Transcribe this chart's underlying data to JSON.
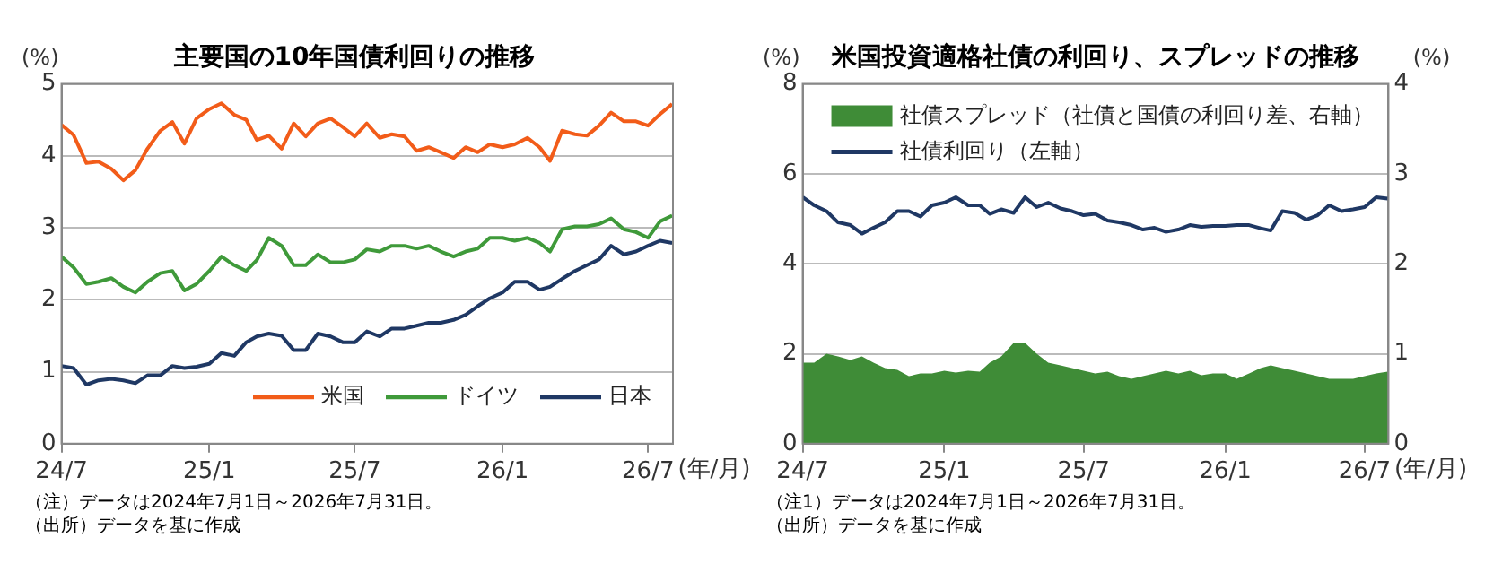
{
  "chart_data": [
    {
      "type": "line",
      "title": "主要国の10年国債利回りの推移",
      "ylabel": "(%)",
      "xlabel": "(年/月)",
      "x": [
        "2024-07-01",
        "2024-07-16",
        "2024-08-01",
        "2024-08-16",
        "2024-09-01",
        "2024-09-16",
        "2024-10-01",
        "2024-10-16",
        "2024-11-01",
        "2024-11-16",
        "2024-12-01",
        "2024-12-16",
        "2025-01-01",
        "2025-01-16",
        "2025-02-01",
        "2025-02-16",
        "2025-03-01",
        "2025-03-16",
        "2025-04-01",
        "2025-04-16",
        "2025-05-01",
        "2025-05-16",
        "2025-06-01",
        "2025-06-16",
        "2025-07-01",
        "2025-07-16",
        "2025-08-01",
        "2025-08-16",
        "2025-09-01",
        "2025-09-16",
        "2025-10-01",
        "2025-10-16",
        "2025-11-01",
        "2025-11-16",
        "2025-12-01",
        "2025-12-16",
        "2026-01-01",
        "2026-01-16",
        "2026-02-01",
        "2026-02-16",
        "2026-03-01",
        "2026-03-16",
        "2026-04-01",
        "2026-04-16",
        "2026-05-01",
        "2026-05-16",
        "2026-06-01",
        "2026-06-16",
        "2026-07-01",
        "2026-07-16",
        "2026-07-31"
      ],
      "series": [
        {
          "name": "米国",
          "color": "#f25c19",
          "values": [
            4.43,
            4.29,
            3.9,
            3.92,
            3.82,
            3.66,
            3.8,
            4.1,
            4.35,
            4.47,
            4.17,
            4.52,
            4.65,
            4.73,
            4.57,
            4.5,
            4.22,
            4.28,
            4.1,
            4.45,
            4.27,
            4.45,
            4.52,
            4.4,
            4.27,
            4.45,
            4.25,
            4.3,
            4.27,
            4.07,
            4.12,
            4.05,
            3.97,
            4.12,
            4.05,
            4.16,
            4.12,
            4.16,
            4.25,
            4.12,
            3.93,
            4.35,
            4.3,
            4.28,
            4.42,
            4.6,
            4.48,
            4.48,
            4.42,
            4.58,
            4.72
          ]
        },
        {
          "name": "ドイツ",
          "color": "#3f9a3a",
          "values": [
            2.6,
            2.45,
            2.22,
            2.25,
            2.3,
            2.18,
            2.1,
            2.25,
            2.37,
            2.4,
            2.13,
            2.22,
            2.4,
            2.6,
            2.48,
            2.4,
            2.55,
            2.86,
            2.75,
            2.48,
            2.48,
            2.63,
            2.52,
            2.52,
            2.56,
            2.7,
            2.67,
            2.75,
            2.75,
            2.71,
            2.75,
            2.67,
            2.6,
            2.67,
            2.71,
            2.86,
            2.86,
            2.82,
            2.86,
            2.79,
            2.67,
            2.98,
            3.02,
            3.02,
            3.05,
            3.13,
            2.98,
            2.94,
            2.86,
            3.09,
            3.17
          ]
        },
        {
          "name": "日本",
          "color": "#1f3864",
          "values": [
            1.08,
            1.05,
            0.82,
            0.88,
            0.9,
            0.88,
            0.84,
            0.95,
            0.95,
            1.08,
            1.05,
            1.07,
            1.11,
            1.26,
            1.22,
            1.41,
            1.49,
            1.53,
            1.5,
            1.3,
            1.3,
            1.53,
            1.49,
            1.41,
            1.41,
            1.56,
            1.49,
            1.6,
            1.6,
            1.64,
            1.68,
            1.68,
            1.72,
            1.79,
            1.91,
            2.02,
            2.1,
            2.25,
            2.25,
            2.14,
            2.18,
            2.29,
            2.4,
            2.48,
            2.56,
            2.75,
            2.63,
            2.67,
            2.75,
            2.82,
            2.79
          ]
        }
      ],
      "xlim": [
        "2024-07-01",
        "2026-08-01"
      ],
      "xticks": [
        {
          "value": "2024-07-01",
          "label": "24/7"
        },
        {
          "value": "2025-01-01",
          "label": "25/1"
        },
        {
          "value": "2025-07-01",
          "label": "25/7"
        },
        {
          "value": "2026-01-01",
          "label": "26/1"
        },
        {
          "value": "2026-07-01",
          "label": "26/7"
        }
      ],
      "ylim": [
        0,
        5
      ],
      "yticks": [
        0,
        1,
        2,
        3,
        4,
        5
      ],
      "grid": "y",
      "legend": "bottom right",
      "annotations": [
        "（注）データは2024年7月1日～2026年7月31日。",
        "（出所）データを基に作成"
      ]
    },
    {
      "type": "line",
      "title": "米国投資適格社債の利回り、スプレッドの推移",
      "ylabel": "(%)",
      "y2label": "(%)",
      "xlabel": "(年/月)",
      "x": [
        "2024-07-01",
        "2024-07-16",
        "2024-08-01",
        "2024-08-16",
        "2024-09-01",
        "2024-09-16",
        "2024-10-01",
        "2024-10-16",
        "2024-11-01",
        "2024-11-16",
        "2024-12-01",
        "2024-12-16",
        "2025-01-01",
        "2025-01-16",
        "2025-02-01",
        "2025-02-16",
        "2025-03-01",
        "2025-03-16",
        "2025-04-01",
        "2025-04-16",
        "2025-05-01",
        "2025-05-16",
        "2025-06-01",
        "2025-06-16",
        "2025-07-01",
        "2025-07-16",
        "2025-08-01",
        "2025-08-16",
        "2025-09-01",
        "2025-09-16",
        "2025-10-01",
        "2025-10-16",
        "2025-11-01",
        "2025-11-16",
        "2025-12-01",
        "2025-12-16",
        "2026-01-01",
        "2026-01-16",
        "2026-02-01",
        "2026-02-16",
        "2026-03-01",
        "2026-03-16",
        "2026-04-01",
        "2026-04-16",
        "2026-05-01",
        "2026-05-16",
        "2026-06-01",
        "2026-06-16",
        "2026-07-01",
        "2026-07-16",
        "2026-07-31"
      ],
      "series": [
        {
          "name": "社債スプレッド（社債と国債の利回り差、右軸）",
          "type": "area",
          "axis": "y2",
          "color": "#3f8c37",
          "values": [
            0.9,
            0.9,
            1.0,
            0.97,
            0.93,
            0.97,
            0.9,
            0.84,
            0.82,
            0.75,
            0.78,
            0.78,
            0.81,
            0.79,
            0.81,
            0.8,
            0.9,
            0.97,
            1.12,
            1.12,
            1.0,
            0.9,
            0.87,
            0.84,
            0.81,
            0.78,
            0.8,
            0.75,
            0.72,
            0.75,
            0.78,
            0.81,
            0.78,
            0.81,
            0.76,
            0.78,
            0.78,
            0.72,
            0.78,
            0.84,
            0.87,
            0.84,
            0.81,
            0.78,
            0.75,
            0.72,
            0.72,
            0.72,
            0.75,
            0.78,
            0.8
          ]
        },
        {
          "name": "社債利回り（左軸）",
          "color": "#1f3864",
          "values": [
            5.48,
            5.3,
            5.17,
            4.92,
            4.86,
            4.67,
            4.8,
            4.92,
            5.17,
            5.17,
            5.05,
            5.3,
            5.36,
            5.48,
            5.3,
            5.3,
            5.11,
            5.21,
            5.13,
            5.48,
            5.26,
            5.36,
            5.23,
            5.17,
            5.08,
            5.11,
            4.96,
            4.92,
            4.86,
            4.76,
            4.8,
            4.71,
            4.76,
            4.86,
            4.82,
            4.84,
            4.84,
            4.86,
            4.86,
            4.79,
            4.74,
            5.17,
            5.13,
            4.98,
            5.08,
            5.3,
            5.17,
            5.21,
            5.26,
            5.48,
            5.45
          ]
        }
      ],
      "xlim": [
        "2024-07-01",
        "2026-08-01"
      ],
      "xticks": [
        {
          "value": "2024-07-01",
          "label": "24/7"
        },
        {
          "value": "2025-01-01",
          "label": "25/1"
        },
        {
          "value": "2025-07-01",
          "label": "25/7"
        },
        {
          "value": "2026-01-01",
          "label": "26/1"
        },
        {
          "value": "2026-07-01",
          "label": "26/7"
        }
      ],
      "ylim": [
        0,
        8
      ],
      "yticks": [
        0,
        2,
        4,
        6,
        8
      ],
      "y2lim": [
        0,
        4
      ],
      "y2ticks": [
        0,
        1,
        2,
        3,
        4
      ],
      "grid": "y",
      "legend": "top left",
      "annotations": [
        "（注1）データは2024年7月1日～2026年7月31日。",
        "（出所）データを基に作成"
      ]
    }
  ]
}
